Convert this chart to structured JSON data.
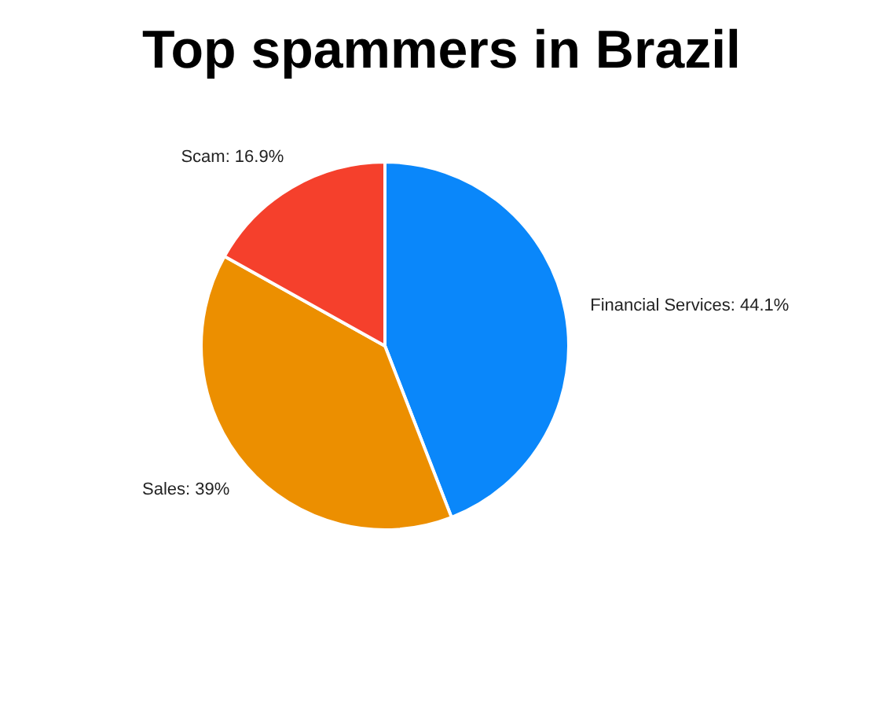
{
  "chart_data": {
    "type": "pie",
    "title": "Top spammers in Brazil",
    "categories": [
      "Financial Services",
      "Sales",
      "Scam"
    ],
    "values": [
      44.1,
      39,
      16.9
    ],
    "colors": [
      "#0a87fa",
      "#ec8f00",
      "#f5402c"
    ],
    "value_labels": [
      "44.1%",
      "39%",
      "16.9%"
    ],
    "legend": false
  }
}
